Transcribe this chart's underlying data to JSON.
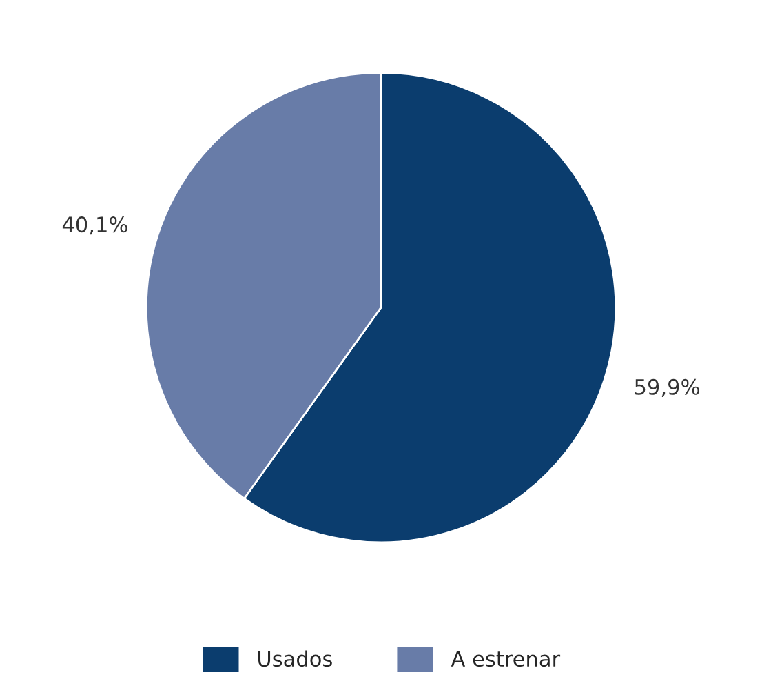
{
  "chart_data": {
    "type": "pie",
    "categories": [
      "Usados",
      "A estrenar"
    ],
    "values": [
      59.9,
      40.1
    ],
    "value_labels": [
      "59,9%",
      "40,1%"
    ],
    "colors": [
      "#0b3d6e",
      "#687ca8"
    ],
    "legend": "bottom"
  }
}
